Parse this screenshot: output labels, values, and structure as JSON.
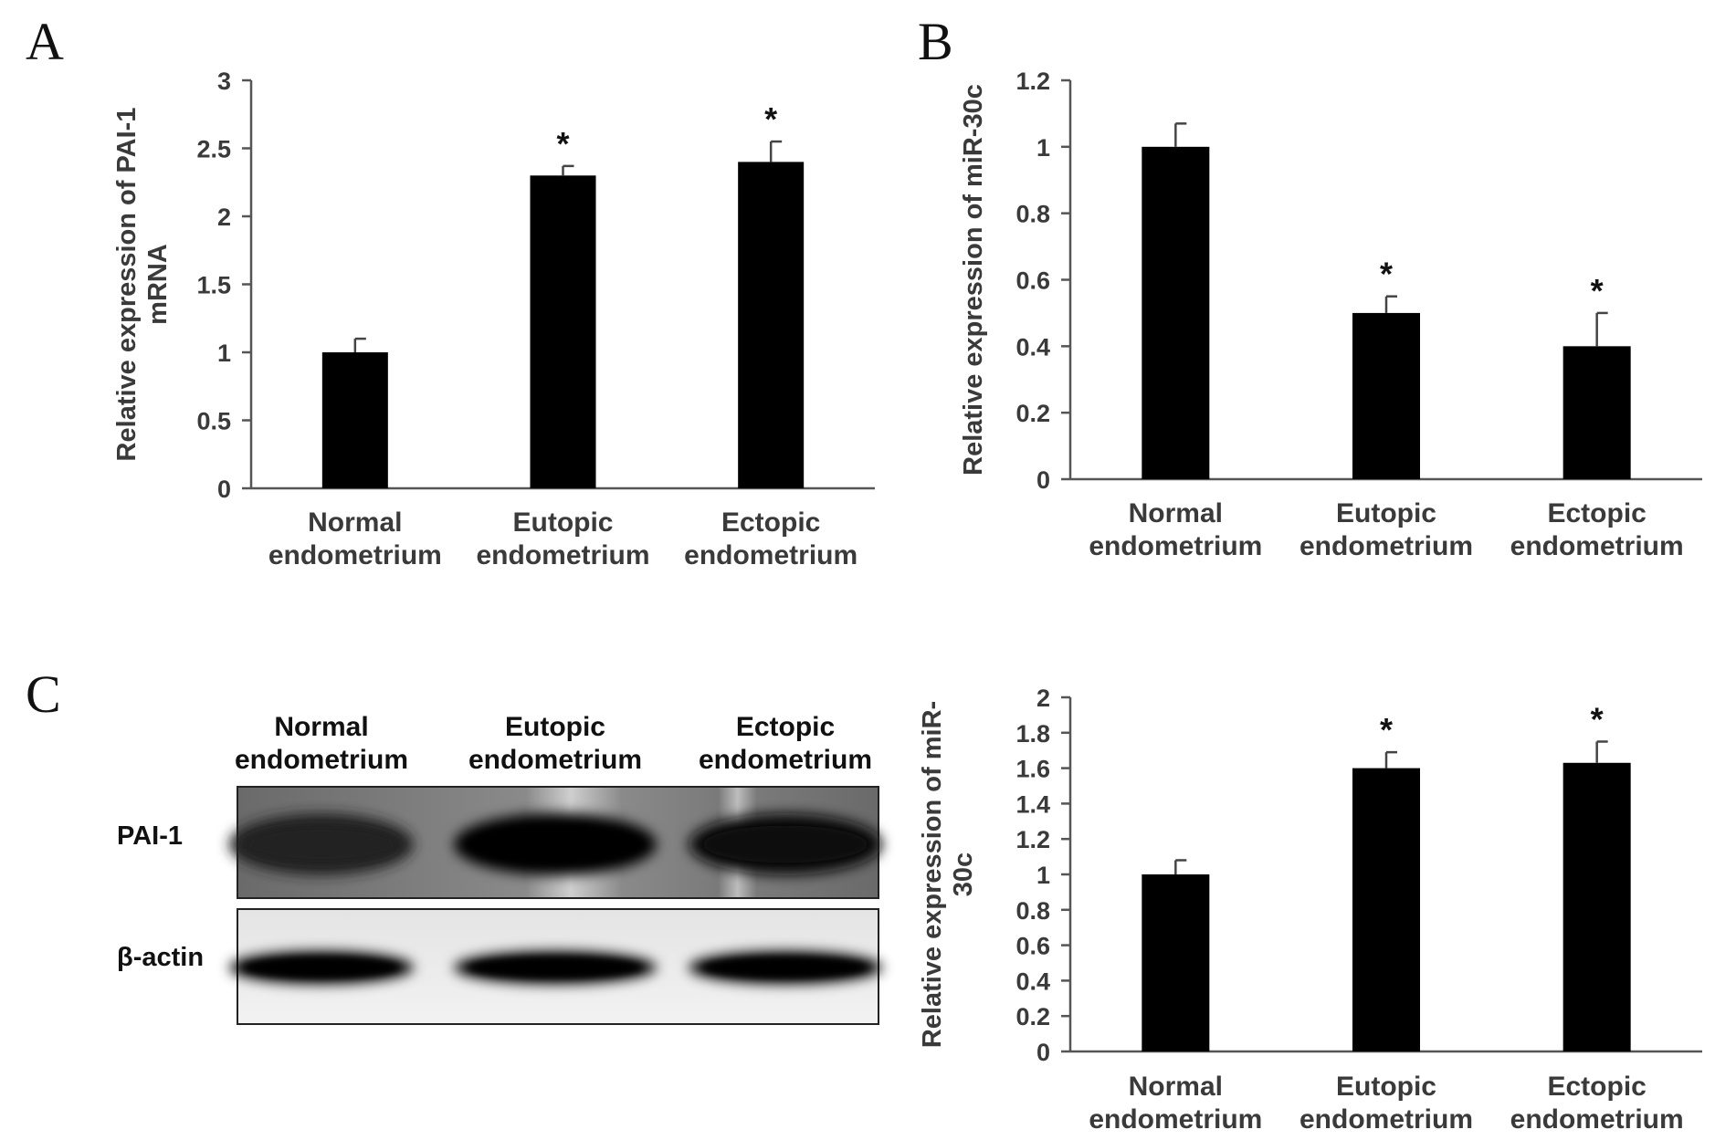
{
  "panels": {
    "A": {
      "letter": "A"
    },
    "B": {
      "letter": "B"
    },
    "C": {
      "letter": "C"
    }
  },
  "blot": {
    "lane_headers": [
      [
        "Normal",
        "endometrium"
      ],
      [
        "Eutopic",
        "endometrium"
      ],
      [
        "Ectopic",
        "endometrium"
      ]
    ],
    "rows": [
      {
        "label": "PAI-1",
        "band_intensity": [
          0.72,
          0.95,
          0.92
        ]
      },
      {
        "label": "β-actin",
        "band_intensity": [
          0.95,
          0.95,
          0.95
        ]
      }
    ]
  },
  "chart_data": [
    {
      "id": "A",
      "type": "bar",
      "categories": [
        [
          "Normal",
          "endometrium"
        ],
        [
          "Eutopic",
          "endometrium"
        ],
        [
          "Ectopic",
          "endometrium"
        ]
      ],
      "values": [
        1.0,
        2.3,
        2.4
      ],
      "errors": [
        0.1,
        0.07,
        0.15
      ],
      "significance": [
        "",
        "*",
        "*"
      ],
      "ylabel": [
        "Relative expression of PAI-1",
        "mRNA"
      ],
      "ylim": [
        0,
        3
      ],
      "yticks": [
        0,
        0.5,
        1,
        1.5,
        2,
        2.5,
        3
      ],
      "ytick_labels": [
        "0",
        "0.5",
        "1",
        "1.5",
        "2",
        "2.5",
        "3"
      ],
      "bar_color": "#000000"
    },
    {
      "id": "B",
      "type": "bar",
      "categories": [
        [
          "Normal",
          "endometrium"
        ],
        [
          "Eutopic",
          "endometrium"
        ],
        [
          "Ectopic",
          "endometrium"
        ]
      ],
      "values": [
        1.0,
        0.5,
        0.4
      ],
      "errors": [
        0.07,
        0.05,
        0.1
      ],
      "significance": [
        "",
        "*",
        "*"
      ],
      "ylabel": [
        "Relative expression of miR-30c"
      ],
      "ylim": [
        0,
        1.2
      ],
      "yticks": [
        0,
        0.2,
        0.4,
        0.6,
        0.8,
        1,
        1.2
      ],
      "ytick_labels": [
        "0",
        "0.2",
        "0.4",
        "0.6",
        "0.8",
        "1",
        "1.2"
      ],
      "bar_color": "#000000"
    },
    {
      "id": "C",
      "type": "bar",
      "categories": [
        [
          "Normal",
          "endometrium"
        ],
        [
          "Eutopic",
          "endometrium"
        ],
        [
          "Ectopic",
          "endometrium"
        ]
      ],
      "values": [
        1.0,
        1.6,
        1.63
      ],
      "errors": [
        0.08,
        0.09,
        0.12
      ],
      "significance": [
        "",
        "*",
        "*"
      ],
      "ylabel": [
        "Relative expression of miR-",
        "30c"
      ],
      "ylim": [
        0,
        2
      ],
      "yticks": [
        0,
        0.2,
        0.4,
        0.6,
        0.8,
        1,
        1.2,
        1.4,
        1.6,
        1.8,
        2
      ],
      "ytick_labels": [
        "0",
        "0.2",
        "0.4",
        "0.6",
        "0.8",
        "1",
        "1.2",
        "1.4",
        "1.6",
        "1.8",
        "2"
      ],
      "bar_color": "#000000"
    }
  ]
}
